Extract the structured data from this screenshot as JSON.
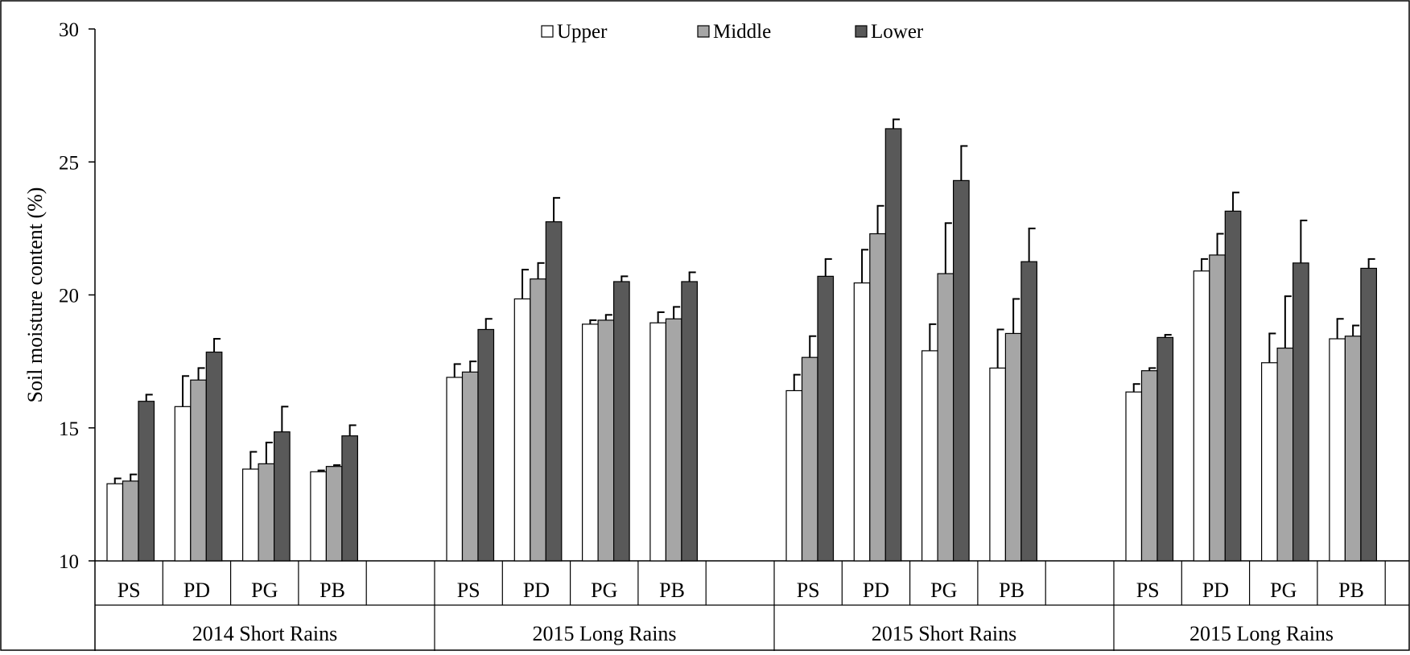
{
  "chart_data": {
    "type": "bar",
    "ylabel": "Soil moisture content (%)",
    "ylim": [
      10,
      30
    ],
    "yticks": [
      10,
      15,
      20,
      25,
      30
    ],
    "grid": false,
    "legend_position": "top",
    "series": [
      {
        "name": "Upper",
        "color": "#ffffff"
      },
      {
        "name": "Middle",
        "color": "#a6a6a6"
      },
      {
        "name": "Lower",
        "color": "#595959"
      }
    ],
    "seasons": [
      {
        "label": "2014 Short Rains",
        "treatments": [
          {
            "label": "PS",
            "values": [
              12.9,
              13.0,
              16.0
            ],
            "errors": [
              0.2,
              0.25,
              0.25
            ]
          },
          {
            "label": "PD",
            "values": [
              15.8,
              16.8,
              17.85
            ],
            "errors": [
              1.15,
              0.45,
              0.5
            ]
          },
          {
            "label": "PG",
            "values": [
              13.45,
              13.65,
              14.85
            ],
            "errors": [
              0.65,
              0.8,
              0.95
            ]
          },
          {
            "label": "PB",
            "values": [
              13.35,
              13.55,
              14.7
            ],
            "errors": [
              0.05,
              0.05,
              0.4
            ]
          }
        ]
      },
      {
        "label": "2015 Long Rains",
        "treatments": [
          {
            "label": "PS",
            "values": [
              16.9,
              17.1,
              18.7
            ],
            "errors": [
              0.5,
              0.4,
              0.4
            ]
          },
          {
            "label": "PD",
            "values": [
              19.85,
              20.6,
              22.75
            ],
            "errors": [
              1.1,
              0.6,
              0.9
            ]
          },
          {
            "label": "PG",
            "values": [
              18.9,
              19.05,
              20.5
            ],
            "errors": [
              0.15,
              0.2,
              0.2
            ]
          },
          {
            "label": "PB",
            "values": [
              18.95,
              19.1,
              20.5
            ],
            "errors": [
              0.4,
              0.45,
              0.35
            ]
          }
        ]
      },
      {
        "label": "2015 Short Rains",
        "treatments": [
          {
            "label": "PS",
            "values": [
              16.4,
              17.65,
              20.7
            ],
            "errors": [
              0.6,
              0.8,
              0.65
            ]
          },
          {
            "label": "PD",
            "values": [
              20.45,
              22.3,
              26.25
            ],
            "errors": [
              1.25,
              1.05,
              0.35
            ]
          },
          {
            "label": "PG",
            "values": [
              17.9,
              20.8,
              24.3
            ],
            "errors": [
              1.0,
              1.9,
              1.3
            ]
          },
          {
            "label": "PB",
            "values": [
              17.25,
              18.55,
              21.25
            ],
            "errors": [
              1.45,
              1.3,
              1.25
            ]
          }
        ]
      },
      {
        "label": "2015 Long Rains",
        "treatments": [
          {
            "label": "PS",
            "values": [
              16.35,
              17.15,
              18.4
            ],
            "errors": [
              0.3,
              0.1,
              0.1
            ]
          },
          {
            "label": "PD",
            "values": [
              20.9,
              21.5,
              23.15
            ],
            "errors": [
              0.45,
              0.8,
              0.7
            ]
          },
          {
            "label": "PG",
            "values": [
              17.45,
              18.0,
              21.2
            ],
            "errors": [
              1.1,
              1.95,
              1.6
            ]
          },
          {
            "label": "PB",
            "values": [
              18.35,
              18.45,
              21.0
            ],
            "errors": [
              0.75,
              0.4,
              0.35
            ]
          }
        ]
      }
    ]
  }
}
